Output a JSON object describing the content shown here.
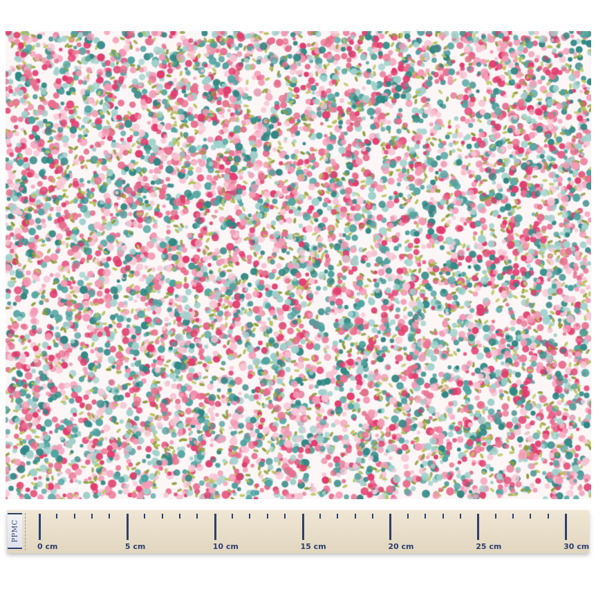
{
  "fabric": {
    "colors": [
      "#e23b6e",
      "#f39ab6",
      "#f7c4d3",
      "#2e8784",
      "#4fa3a0",
      "#9fd0cb",
      "#8f9c3a",
      "#b7c25a",
      "#e76f8e"
    ],
    "background": "#fdf6f7"
  },
  "ruler": {
    "brand": "PPMC",
    "labels": [
      "0 cm",
      "5 cm",
      "10 cm",
      "15 cm",
      "20 cm",
      "25 cm",
      "30 cm"
    ],
    "max_cm": 30,
    "tick_color": "#2b3f72"
  }
}
